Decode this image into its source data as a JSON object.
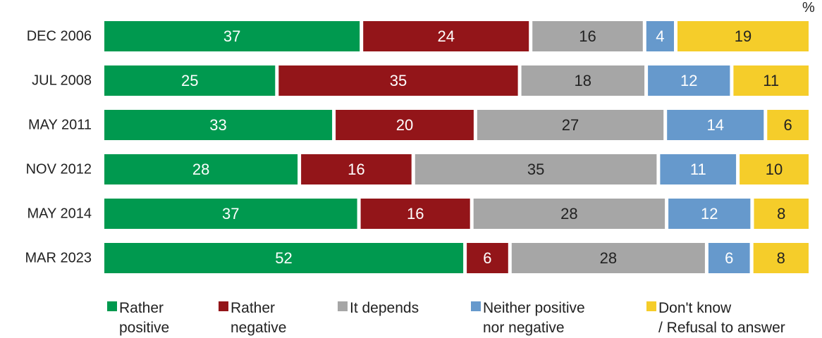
{
  "unit_label": "%",
  "colors": {
    "rather_positive": "#00994f",
    "rather_negative": "#931519",
    "it_depends": "#a6a6a6",
    "neither": "#6699cc",
    "dont_know": "#f5cd2a"
  },
  "legend": [
    {
      "label": "Rather\npositive",
      "color": "#00994f"
    },
    {
      "label": "Rather\nnegative",
      "color": "#931519"
    },
    {
      "label": "It depends",
      "color": "#a6a6a6"
    },
    {
      "label": "Neither positive\nnor negative",
      "color": "#6699cc"
    },
    {
      "label": "Don't know\n/ Refusal to answer",
      "color": "#f5cd2a"
    }
  ],
  "chart_data": {
    "type": "bar",
    "orientation": "horizontal",
    "stacked": true,
    "unit": "%",
    "categories": [
      "DEC 2006",
      "JUL 2008",
      "MAY 2011",
      "NOV 2012",
      "MAY 2014",
      "MAR 2023"
    ],
    "series": [
      {
        "name": "Rather positive",
        "values": [
          37,
          25,
          33,
          28,
          37,
          52
        ],
        "label_color": "#ffffff"
      },
      {
        "name": "Rather negative",
        "values": [
          24,
          35,
          20,
          16,
          16,
          6
        ],
        "label_color": "#ffffff"
      },
      {
        "name": "It depends",
        "values": [
          16,
          18,
          27,
          35,
          28,
          28
        ],
        "label_color": "#222222"
      },
      {
        "name": "Neither positive nor negative",
        "values": [
          4,
          12,
          14,
          11,
          12,
          6
        ],
        "label_color": "#ffffff"
      },
      {
        "name": "Don't know / Refusal to answer",
        "values": [
          19,
          11,
          6,
          10,
          8,
          8
        ],
        "label_color": "#222222"
      }
    ],
    "legend_position": "bottom",
    "grid": false
  }
}
